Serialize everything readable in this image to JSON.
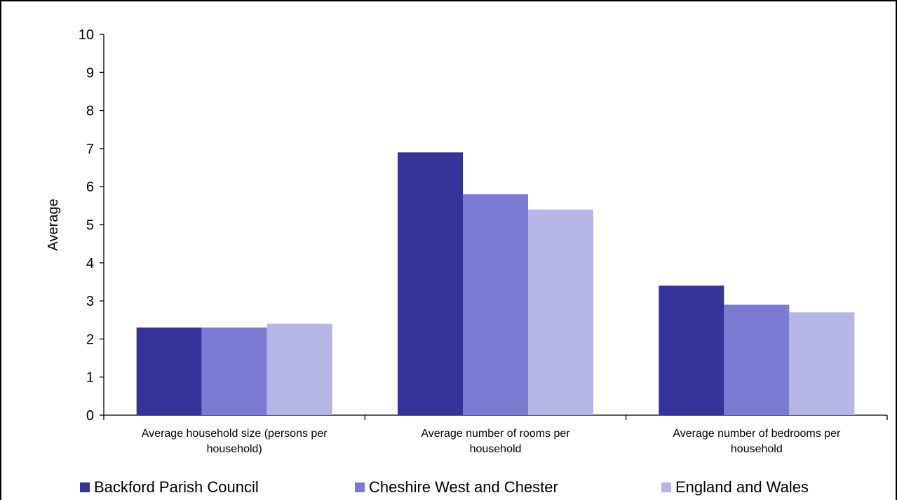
{
  "chart_data": {
    "type": "bar",
    "ylabel": "Average",
    "ylim": [
      0,
      10
    ],
    "yticks": [
      "0",
      "1",
      "2",
      "3",
      "4",
      "5",
      "6",
      "7",
      "8",
      "9",
      "10"
    ],
    "categories": [
      [
        "Average household size (persons per",
        "household)"
      ],
      [
        "Average number of rooms per",
        "household"
      ],
      [
        "Average number of bedrooms per",
        "household"
      ]
    ],
    "series": [
      {
        "name": "Backford Parish Council",
        "color": "#333399",
        "values": [
          2.3,
          6.9,
          3.4
        ]
      },
      {
        "name": "Cheshire West and Chester",
        "color": "#7b7bd4",
        "values": [
          2.3,
          5.8,
          2.9
        ]
      },
      {
        "name": "England and Wales",
        "color": "#b5b5e6",
        "values": [
          2.4,
          5.4,
          2.7
        ]
      }
    ],
    "grid": false,
    "legend": "bottom"
  }
}
